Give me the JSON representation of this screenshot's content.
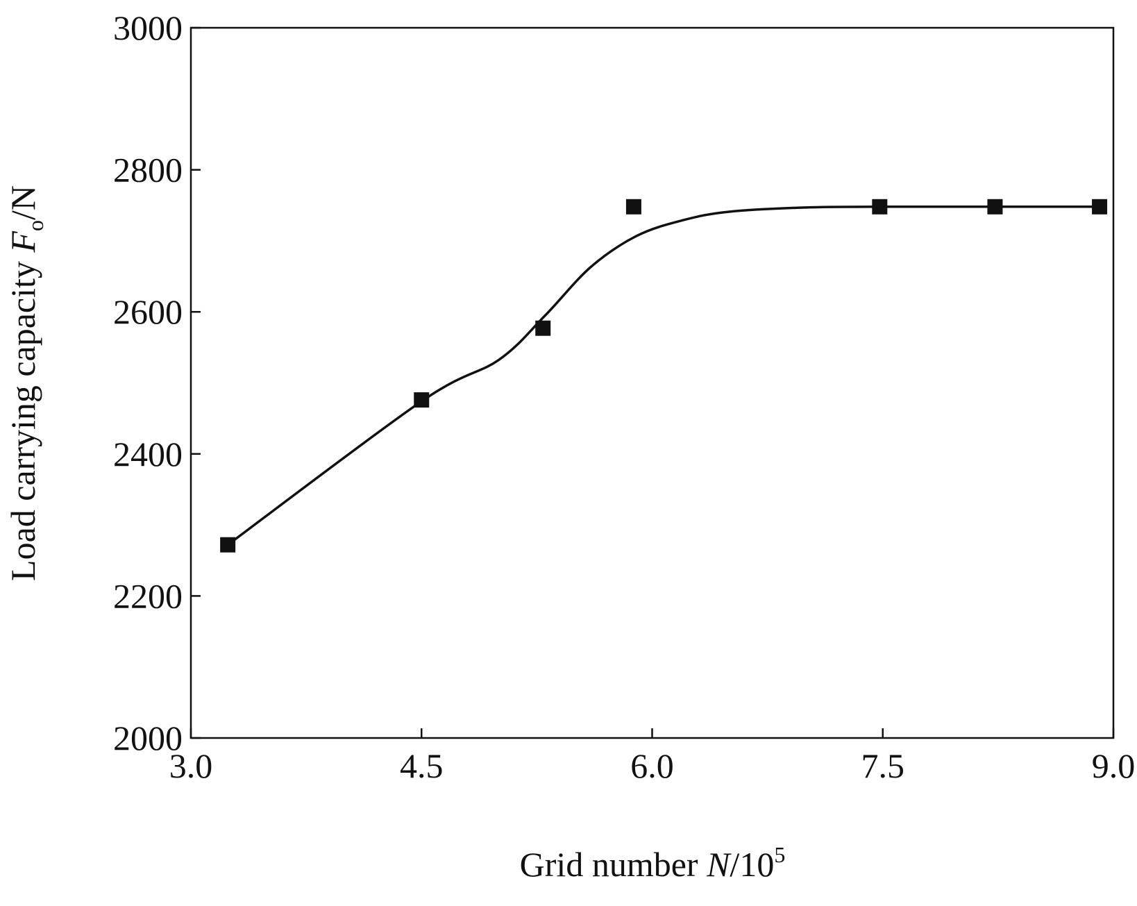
{
  "chart_data": {
    "type": "scatter",
    "xlabel": {
      "text": "Grid number ",
      "symbol": "N",
      "unit": "/10",
      "superscript": "5"
    },
    "ylabel": {
      "text": "Load carrying capacity ",
      "symbol": "F",
      "subscript": "o",
      "unit": "/N"
    },
    "xlim": [
      3.0,
      9.0
    ],
    "xticks": [
      {
        "value": 3.0,
        "label": "3.0"
      },
      {
        "value": 4.5,
        "label": "4.5"
      },
      {
        "value": 6.0,
        "label": "6.0"
      },
      {
        "value": 7.5,
        "label": "7.5"
      },
      {
        "value": 9.0,
        "label": "9.0"
      }
    ],
    "ylim": [
      2000,
      3000
    ],
    "yticks": [
      2000,
      2200,
      2400,
      2600,
      2800,
      3000
    ],
    "series": [
      {
        "type": "scatter",
        "color": "#111111",
        "x": [
          3.24,
          4.5,
          5.29,
          5.88,
          7.48,
          8.23,
          8.91
        ],
        "values": [
          2272,
          2476,
          2577,
          2748,
          2748,
          2748,
          2748
        ]
      },
      {
        "type": "line",
        "color": "#111111",
        "x": [
          3.24,
          4.5,
          5.0,
          5.3,
          5.6,
          5.9,
          6.2,
          6.5,
          7.0,
          7.5,
          8.0,
          8.5,
          8.91
        ],
        "values": [
          2272,
          2474,
          2532,
          2594,
          2663,
          2707,
          2729,
          2741,
          2747,
          2748,
          2748,
          2748,
          2748
        ]
      }
    ]
  }
}
